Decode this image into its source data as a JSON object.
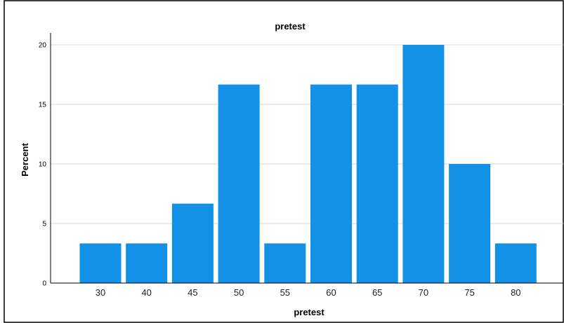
{
  "chart_data": {
    "type": "bar",
    "title": "pretest",
    "xlabel": "pretest",
    "ylabel": "Percent",
    "categories": [
      "30",
      "40",
      "45",
      "50",
      "55",
      "60",
      "65",
      "70",
      "75",
      "80"
    ],
    "values": [
      3.33,
      3.33,
      6.67,
      16.67,
      3.33,
      16.67,
      16.67,
      20.0,
      10.0,
      3.33
    ],
    "ylim": [
      0,
      21
    ],
    "yticks": [
      0,
      5,
      10,
      15,
      20
    ],
    "grid": true,
    "bar_color": "#1391e6",
    "grid_color": "#d4d4d4"
  }
}
